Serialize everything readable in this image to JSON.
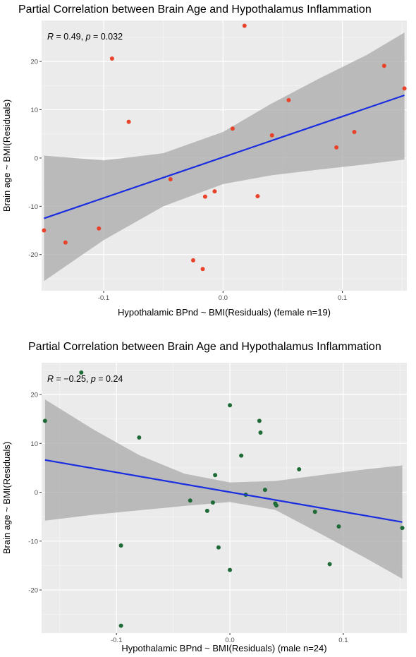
{
  "chart_data": [
    {
      "type": "scatter",
      "title": "Partial Correlation between Brain Age and Hypothalamus Inflammation",
      "xlabel": "Hypothalamic BPnd ~ BMI(Residuals) (female n=19)",
      "ylabel": "Brain age ~ BMI(Residuals)",
      "annotation": {
        "r_symbol": "R",
        "r_text": " = 0.49, ",
        "p_symbol": "p",
        "p_text": " = 0.032"
      },
      "xlim": [
        -0.152,
        0.154
      ],
      "ylim": [
        -27.5,
        28.5
      ],
      "x_ticks": [
        -0.1,
        0,
        0.1
      ],
      "x_tick_labels": [
        "-0.1",
        "0.0",
        "0.1"
      ],
      "y_ticks": [
        -20,
        -10,
        0,
        10,
        20
      ],
      "y_tick_labels": [
        "-20",
        "-10",
        "0",
        "10",
        "20"
      ],
      "point_color": "#e8432a",
      "fit_color": "#1a2de0",
      "band_color": "#a9a9a9",
      "grid": true,
      "series": [
        {
          "points": [
            [
              -0.15,
              -15.0
            ],
            [
              -0.132,
              -17.5
            ],
            [
              -0.104,
              -14.6
            ],
            [
              -0.093,
              20.6
            ],
            [
              -0.079,
              7.5
            ],
            [
              -0.044,
              -4.4
            ],
            [
              -0.025,
              -21.2
            ],
            [
              -0.017,
              -23.0
            ],
            [
              -0.015,
              -8.0
            ],
            [
              -0.007,
              -6.9
            ],
            [
              0.008,
              6.1
            ],
            [
              0.018,
              27.4
            ],
            [
              0.029,
              -7.9
            ],
            [
              0.041,
              4.7
            ],
            [
              0.055,
              12.0
            ],
            [
              0.095,
              2.2
            ],
            [
              0.11,
              5.4
            ],
            [
              0.135,
              19.1
            ],
            [
              0.152,
              14.4
            ]
          ]
        }
      ],
      "fit": {
        "x": [
          -0.15,
          0.152
        ],
        "y": [
          -12.5,
          13.0
        ]
      },
      "band_upper": [
        [
          -0.15,
          0.5
        ],
        [
          -0.1,
          -0.5
        ],
        [
          -0.05,
          1.0
        ],
        [
          0.0,
          5.4
        ],
        [
          0.04,
          11.2
        ],
        [
          0.08,
          16.4
        ],
        [
          0.12,
          21.3
        ],
        [
          0.152,
          26.0
        ]
      ],
      "band_lower": [
        [
          -0.15,
          -25.5
        ],
        [
          -0.1,
          -17.0
        ],
        [
          -0.05,
          -10.0
        ],
        [
          0.0,
          -5.4
        ],
        [
          0.04,
          -3.6
        ],
        [
          0.08,
          -2.4
        ],
        [
          0.12,
          -1.3
        ],
        [
          0.152,
          -0.3
        ]
      ]
    },
    {
      "type": "scatter",
      "title": "Partial Correlation between Brain Age and Hypothalamus Inflammation",
      "xlabel": "Hypothalamic BPnd ~ BMI(Residuals) (male n=24)",
      "ylabel": "Brain age ~ BMI(Residuals)",
      "annotation": {
        "r_symbol": "R",
        "r_text": " = −0.25, ",
        "p_symbol": "p",
        "p_text": " = 0.24"
      },
      "xlim": [
        -0.166,
        0.156
      ],
      "ylim": [
        -28.8,
        26.5
      ],
      "x_ticks": [
        -0.1,
        0,
        0.1
      ],
      "x_tick_labels": [
        "-0.1",
        "0.0",
        "0.1"
      ],
      "y_ticks": [
        -20,
        -10,
        0,
        10,
        20
      ],
      "y_tick_labels": [
        "-20",
        "-10",
        "0",
        "10",
        "20"
      ],
      "point_color": "#1e6b37",
      "fit_color": "#1a2de0",
      "band_color": "#a9a9a9",
      "grid": true,
      "series": [
        {
          "points": [
            [
              -0.163,
              14.6
            ],
            [
              -0.131,
              24.5
            ],
            [
              -0.08,
              11.2
            ],
            [
              -0.096,
              -10.9
            ],
            [
              -0.096,
              -27.3
            ],
            [
              -0.035,
              -1.7
            ],
            [
              -0.015,
              -2.1
            ],
            [
              -0.013,
              3.5
            ],
            [
              -0.02,
              -3.8
            ],
            [
              -0.01,
              -11.3
            ],
            [
              0.0,
              17.8
            ],
            [
              0.0,
              -15.9
            ],
            [
              0.01,
              7.5
            ],
            [
              0.014,
              -0.5
            ],
            [
              0.026,
              14.6
            ],
            [
              0.027,
              12.2
            ],
            [
              0.031,
              0.5
            ],
            [
              0.04,
              -2.3
            ],
            [
              0.041,
              -2.7
            ],
            [
              0.061,
              4.7
            ],
            [
              0.075,
              -4.0
            ],
            [
              0.088,
              -14.7
            ],
            [
              0.096,
              -7.0
            ],
            [
              0.152,
              -7.3
            ]
          ]
        }
      ],
      "fit": {
        "x": [
          -0.163,
          0.152
        ],
        "y": [
          6.6,
          -6.1
        ]
      },
      "band_upper": [
        [
          -0.163,
          19.0
        ],
        [
          -0.12,
          12.8
        ],
        [
          -0.08,
          7.6
        ],
        [
          -0.04,
          3.8
        ],
        [
          0.0,
          2.0
        ],
        [
          0.04,
          2.3
        ],
        [
          0.08,
          3.5
        ],
        [
          0.12,
          4.7
        ],
        [
          0.152,
          5.5
        ]
      ],
      "band_lower": [
        [
          -0.163,
          -5.8
        ],
        [
          -0.12,
          -4.6
        ],
        [
          -0.08,
          -3.7
        ],
        [
          -0.04,
          -2.8
        ],
        [
          0.0,
          -2.0
        ],
        [
          0.04,
          -3.6
        ],
        [
          0.08,
          -8.5
        ],
        [
          0.12,
          -13.5
        ],
        [
          0.152,
          -17.7
        ]
      ]
    }
  ]
}
